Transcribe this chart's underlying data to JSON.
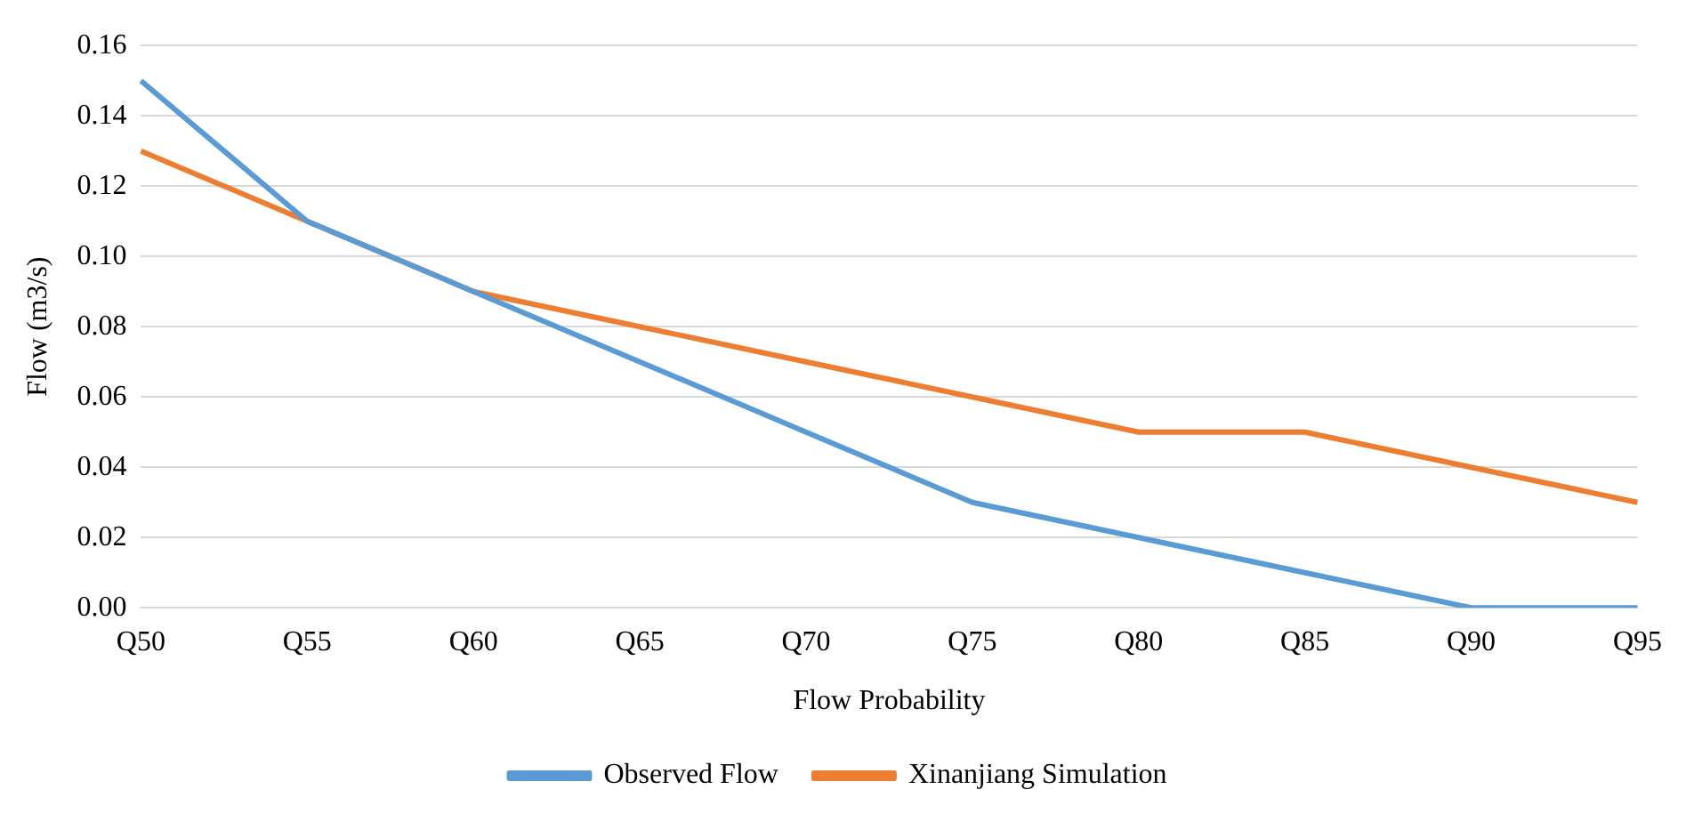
{
  "chart_data": {
    "type": "line",
    "xlabel": "Flow Probability",
    "ylabel": "Flow (m3/s)",
    "categories": [
      "Q50",
      "Q55",
      "Q60",
      "Q65",
      "Q70",
      "Q75",
      "Q80",
      "Q85",
      "Q90",
      "Q95"
    ],
    "series": [
      {
        "name": "Observed Flow",
        "color": "#5b9bd5",
        "values": [
          0.15,
          0.11,
          0.09,
          0.07,
          0.05,
          0.03,
          0.02,
          0.01,
          0.0,
          0.0
        ]
      },
      {
        "name": "Xinanjiang Simulation",
        "color": "#ed7d31",
        "values": [
          0.13,
          0.11,
          0.09,
          0.08,
          0.07,
          0.06,
          0.05,
          0.05,
          0.04,
          0.03
        ]
      }
    ],
    "ylim": [
      0,
      0.16
    ],
    "yticks": [
      {
        "value": 0,
        "label": "0.00"
      },
      {
        "value": 0.02,
        "label": "0.02"
      },
      {
        "value": 0.04,
        "label": "0.04"
      },
      {
        "value": 0.06,
        "label": "0.06"
      },
      {
        "value": 0.08,
        "label": "0.08"
      },
      {
        "value": 0.1,
        "label": "0.10"
      },
      {
        "value": 0.12,
        "label": "0.12"
      },
      {
        "value": 0.14,
        "label": "0.14"
      },
      {
        "value": 0.16,
        "label": "0.16"
      }
    ],
    "grid": "y",
    "legend": "bottom",
    "marker": "none",
    "line_style": "solid"
  }
}
